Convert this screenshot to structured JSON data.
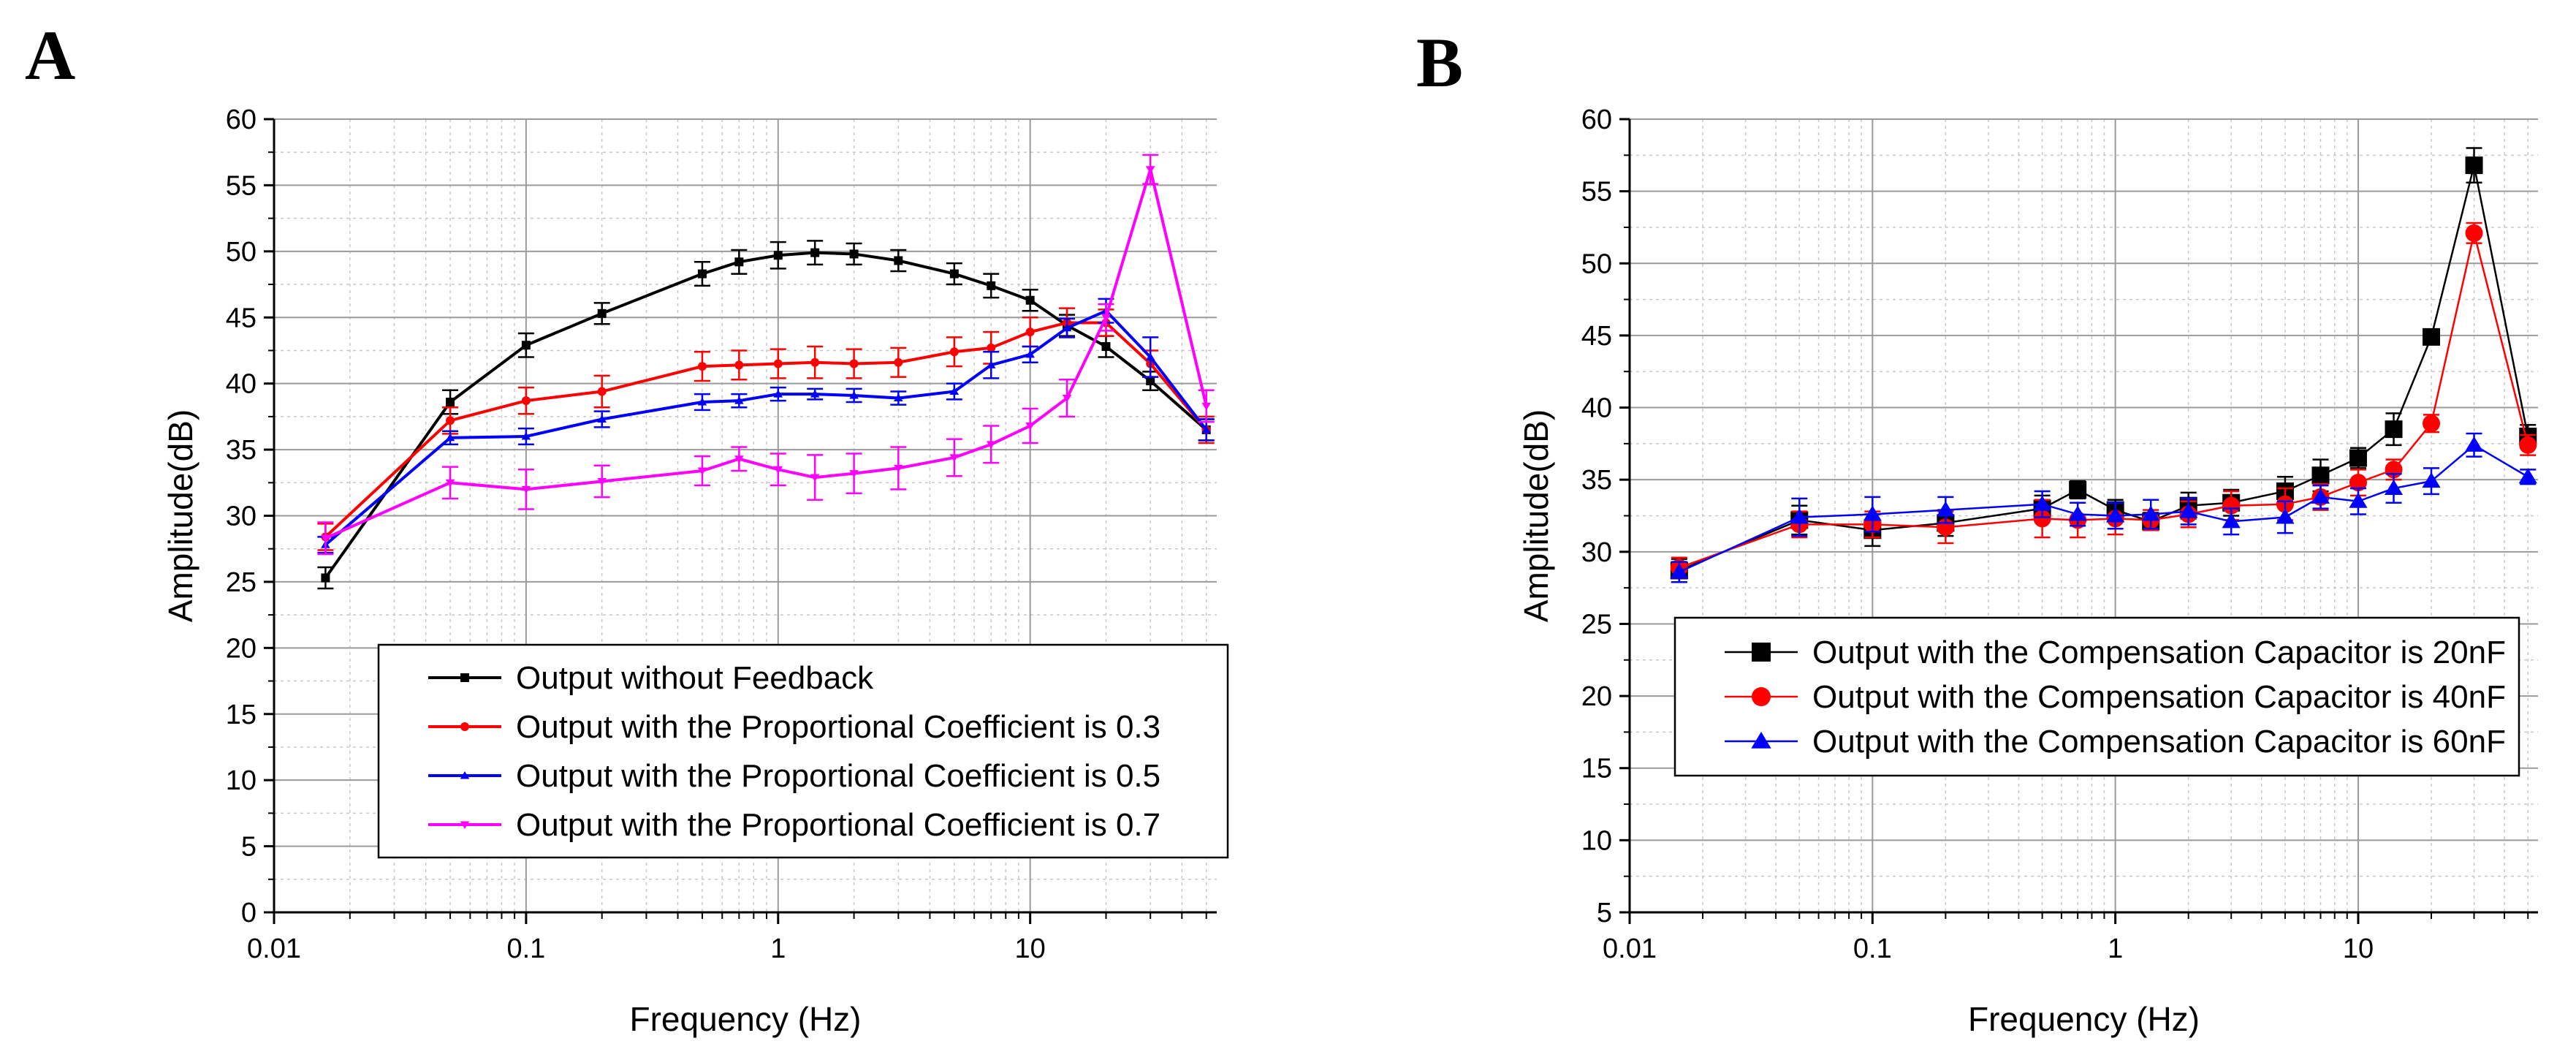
{
  "panels": [
    {
      "label": "A",
      "chart_data": {
        "type": "line",
        "title": "",
        "xlabel": "Frequency (Hz)",
        "ylabel": "Amplitude(dB)",
        "xscale": "log",
        "xlim": [
          0.01,
          55
        ],
        "ylim": [
          0,
          60
        ],
        "yticks": [
          0,
          5,
          10,
          15,
          20,
          25,
          30,
          35,
          40,
          45,
          50,
          55,
          60
        ],
        "xticks": [
          0.01,
          0.1,
          1,
          10
        ],
        "xtick_labels": [
          "0.01",
          "0.1",
          "1",
          "10"
        ],
        "grid": true,
        "legend_position": "lower-right",
        "x": [
          0.016,
          0.05,
          0.1,
          0.2,
          0.5,
          0.7,
          1,
          1.4,
          2,
          3,
          5,
          7,
          10,
          14,
          20,
          30,
          50
        ],
        "series": [
          {
            "name": "Output without Feedback",
            "color": "#000000",
            "marker": "square",
            "values": [
              25.3,
              38.6,
              42.9,
              45.3,
              48.3,
              49.2,
              49.7,
              49.9,
              49.8,
              49.3,
              48.3,
              47.4,
              46.3,
              44.4,
              42.8,
              40.2,
              36.5
            ],
            "errors": [
              0.8,
              0.9,
              0.9,
              0.8,
              0.9,
              0.9,
              1.0,
              0.9,
              0.8,
              0.8,
              0.8,
              0.9,
              0.8,
              0.8,
              0.8,
              0.7,
              0.8
            ]
          },
          {
            "name": "Output with the Proportional Coefficient is 0.3",
            "color": "#ff0000",
            "marker": "circle",
            "values": [
              28.4,
              37.2,
              38.7,
              39.4,
              41.3,
              41.4,
              41.5,
              41.6,
              41.5,
              41.6,
              42.4,
              42.7,
              43.9,
              44.6,
              44.6,
              41.5,
              36.5
            ],
            "errors": [
              1.0,
              1.0,
              1.0,
              1.2,
              1.1,
              1.1,
              1.1,
              1.2,
              1.1,
              1.1,
              1.1,
              1.2,
              1.1,
              1.1,
              1.0,
              1.0,
              1.0
            ]
          },
          {
            "name": "Output with the Proportional Coefficient is 0.5",
            "color": "#0000ff",
            "marker": "triangle-up",
            "values": [
              27.8,
              35.9,
              36.0,
              37.3,
              38.6,
              38.7,
              39.2,
              39.2,
              39.1,
              38.9,
              39.4,
              41.4,
              42.2,
              44.2,
              45.5,
              42.0,
              36.5
            ],
            "errors": [
              0.6,
              0.5,
              0.6,
              0.6,
              0.6,
              0.5,
              0.5,
              0.4,
              0.5,
              0.5,
              0.6,
              1.0,
              0.6,
              0.7,
              0.9,
              1.5,
              0.8
            ]
          },
          {
            "name": "Output with the Proportional Coefficient is 0.7",
            "color": "#ff00ff",
            "marker": "triangle-down",
            "values": [
              28.3,
              32.5,
              32.0,
              32.6,
              33.4,
              34.3,
              33.5,
              32.9,
              33.2,
              33.6,
              34.4,
              35.4,
              36.8,
              38.9,
              45.0,
              56.2,
              38.3
            ],
            "errors": [
              1.2,
              1.2,
              1.5,
              1.2,
              1.1,
              0.9,
              1.2,
              1.7,
              1.5,
              1.6,
              1.4,
              1.4,
              1.3,
              1.4,
              1.0,
              1.1,
              1.2
            ]
          }
        ]
      }
    },
    {
      "label": "B",
      "chart_data": {
        "type": "line",
        "title": "",
        "xlabel": "Frequency (Hz)",
        "ylabel": "Amplitude(dB)",
        "xscale": "log",
        "xlim": [
          0.01,
          55
        ],
        "ylim": [
          5,
          60
        ],
        "yticks": [
          5,
          10,
          15,
          20,
          25,
          30,
          35,
          40,
          45,
          50,
          55,
          60
        ],
        "xticks": [
          0.01,
          0.1,
          1,
          10
        ],
        "xtick_labels": [
          "0.01",
          "0.1",
          "1",
          "10"
        ],
        "grid": true,
        "legend_position": "center-left",
        "x": [
          0.016,
          0.05,
          0.1,
          0.2,
          0.5,
          0.7,
          1,
          1.4,
          2,
          3,
          5,
          7,
          10,
          14,
          20,
          30,
          50
        ],
        "series": [
          {
            "name": "Output with the Compensation Capacitor is 20nF",
            "color": "#000000",
            "marker": "square",
            "values": [
              28.7,
              32.2,
              31.5,
              32.0,
              33.0,
              34.3,
              32.9,
              32.1,
              33.2,
              33.4,
              34.2,
              35.3,
              36.5,
              38.5,
              44.9,
              56.8,
              38.0
            ],
            "errors": [
              0.8,
              1.0,
              1.1,
              0.9,
              0.9,
              0.6,
              0.7,
              0.6,
              0.9,
              0.9,
              1.0,
              1.1,
              0.7,
              1.1,
              0.5,
              1.2,
              0.8
            ]
          },
          {
            "name": "Output with the Compensation Capacitor is 40nF",
            "color": "#ff0000",
            "marker": "circle",
            "values": [
              28.9,
              31.9,
              31.9,
              31.7,
              32.3,
              32.2,
              32.3,
              32.2,
              32.6,
              33.2,
              33.3,
              33.8,
              34.8,
              35.7,
              38.9,
              52.1,
              37.4
            ],
            "errors": [
              0.7,
              0.9,
              0.9,
              1.1,
              1.3,
              1.2,
              1.1,
              0.7,
              0.9,
              1.0,
              1.1,
              0.9,
              0.9,
              0.7,
              0.6,
              0.7,
              0.7
            ]
          },
          {
            "name": "Output with the Compensation Capacitor is 60nF",
            "color": "#0000ff",
            "marker": "triangle-up",
            "values": [
              28.6,
              32.4,
              32.6,
              32.9,
              33.3,
              32.6,
              32.5,
              32.6,
              32.8,
              32.1,
              32.4,
              33.8,
              33.5,
              34.4,
              34.9,
              37.4,
              35.2
            ],
            "errors": [
              0.7,
              1.3,
              1.2,
              0.9,
              0.9,
              0.8,
              0.9,
              1.0,
              0.9,
              0.9,
              1.1,
              0.8,
              0.9,
              1.0,
              0.9,
              0.8,
              0.5
            ]
          }
        ]
      }
    }
  ]
}
